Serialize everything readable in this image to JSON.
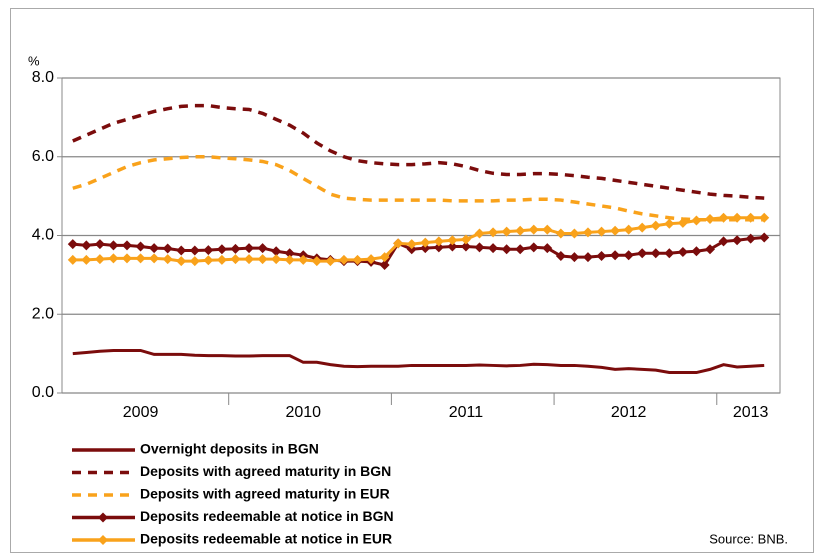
{
  "chart_data": {
    "type": "line",
    "y_unit": "%",
    "source": "Source: BNB.",
    "categories": [
      null,
      null,
      null,
      null,
      null,
      "2009",
      null,
      null,
      null,
      null,
      null,
      null,
      null,
      null,
      null,
      null,
      null,
      "2010",
      null,
      null,
      null,
      null,
      null,
      null,
      null,
      null,
      null,
      null,
      null,
      "2011",
      null,
      null,
      null,
      null,
      null,
      null,
      null,
      null,
      null,
      null,
      null,
      "2012",
      null,
      null,
      null,
      null,
      null,
      null,
      null,
      null,
      "2013",
      null
    ],
    "ylim": [
      0,
      8
    ],
    "yticks": [
      {
        "value": 0,
        "label": "0.0"
      },
      {
        "value": 2,
        "label": "2.0"
      },
      {
        "value": 4,
        "label": "4.0"
      },
      {
        "value": 6,
        "label": "6.0"
      },
      {
        "value": 8,
        "label": "8.0"
      }
    ],
    "grid": true,
    "series": [
      {
        "name": "Overnight deposits in BGN",
        "color": "#7b0c0c",
        "style": "solid",
        "marker": null,
        "values": [
          1.0,
          1.03,
          1.06,
          1.08,
          1.08,
          1.08,
          0.98,
          0.98,
          0.98,
          0.96,
          0.95,
          0.95,
          0.94,
          0.94,
          0.95,
          0.95,
          0.95,
          0.78,
          0.78,
          0.72,
          0.68,
          0.67,
          0.68,
          0.68,
          0.68,
          0.7,
          0.7,
          0.7,
          0.7,
          0.7,
          0.71,
          0.7,
          0.69,
          0.7,
          0.73,
          0.72,
          0.7,
          0.7,
          0.68,
          0.65,
          0.6,
          0.62,
          0.6,
          0.58,
          0.52,
          0.52,
          0.52,
          0.6,
          0.72,
          0.66,
          0.68,
          0.7
        ]
      },
      {
        "name": "Deposits with agreed maturity in BGN",
        "color": "#7b0c0c",
        "style": "dashed",
        "marker": null,
        "values": [
          6.4,
          6.55,
          6.7,
          6.85,
          6.95,
          7.05,
          7.15,
          7.22,
          7.28,
          7.3,
          7.3,
          7.25,
          7.22,
          7.2,
          7.1,
          6.95,
          6.8,
          6.6,
          6.35,
          6.15,
          6.0,
          5.9,
          5.85,
          5.82,
          5.8,
          5.8,
          5.82,
          5.85,
          5.82,
          5.75,
          5.65,
          5.58,
          5.55,
          5.55,
          5.57,
          5.57,
          5.55,
          5.52,
          5.48,
          5.45,
          5.4,
          5.35,
          5.3,
          5.25,
          5.2,
          5.15,
          5.1,
          5.05,
          5.02,
          5.0,
          4.97,
          4.95
        ]
      },
      {
        "name": "Deposits with agreed maturity in EUR",
        "color": "#f9a21b",
        "style": "dashed",
        "marker": null,
        "values": [
          5.2,
          5.3,
          5.45,
          5.6,
          5.75,
          5.85,
          5.92,
          5.95,
          5.98,
          6.0,
          6.0,
          5.97,
          5.95,
          5.92,
          5.88,
          5.8,
          5.65,
          5.45,
          5.25,
          5.05,
          4.95,
          4.92,
          4.9,
          4.9,
          4.9,
          4.9,
          4.9,
          4.9,
          4.88,
          4.88,
          4.88,
          4.88,
          4.9,
          4.9,
          4.92,
          4.92,
          4.9,
          4.85,
          4.8,
          4.75,
          4.7,
          4.62,
          4.55,
          4.5,
          4.45,
          4.42,
          4.4,
          4.4,
          4.4,
          4.4,
          4.4,
          4.4
        ]
      },
      {
        "name": "Deposits redeemable at notice in BGN",
        "color": "#7b0c0c",
        "style": "solid",
        "marker": "diamond",
        "values": [
          3.78,
          3.75,
          3.78,
          3.75,
          3.75,
          3.72,
          3.68,
          3.67,
          3.62,
          3.62,
          3.63,
          3.65,
          3.66,
          3.68,
          3.68,
          3.6,
          3.55,
          3.5,
          3.42,
          3.38,
          3.35,
          3.35,
          3.33,
          3.25,
          3.8,
          3.65,
          3.68,
          3.7,
          3.72,
          3.72,
          3.7,
          3.68,
          3.65,
          3.65,
          3.7,
          3.68,
          3.48,
          3.45,
          3.45,
          3.48,
          3.5,
          3.5,
          3.55,
          3.55,
          3.55,
          3.58,
          3.6,
          3.65,
          3.85,
          3.88,
          3.92,
          3.95
        ]
      },
      {
        "name": "Deposits redeemable at notice in EUR",
        "color": "#f9a21b",
        "style": "solid",
        "marker": "diamond",
        "values": [
          3.38,
          3.38,
          3.4,
          3.42,
          3.42,
          3.42,
          3.42,
          3.4,
          3.35,
          3.35,
          3.37,
          3.38,
          3.4,
          3.4,
          3.4,
          3.4,
          3.38,
          3.38,
          3.35,
          3.35,
          3.38,
          3.38,
          3.4,
          3.45,
          3.8,
          3.78,
          3.82,
          3.85,
          3.88,
          3.9,
          4.05,
          4.08,
          4.1,
          4.12,
          4.15,
          4.15,
          4.05,
          4.05,
          4.08,
          4.1,
          4.12,
          4.15,
          4.2,
          4.25,
          4.3,
          4.32,
          4.38,
          4.42,
          4.45,
          4.45,
          4.45,
          4.45
        ]
      }
    ]
  }
}
